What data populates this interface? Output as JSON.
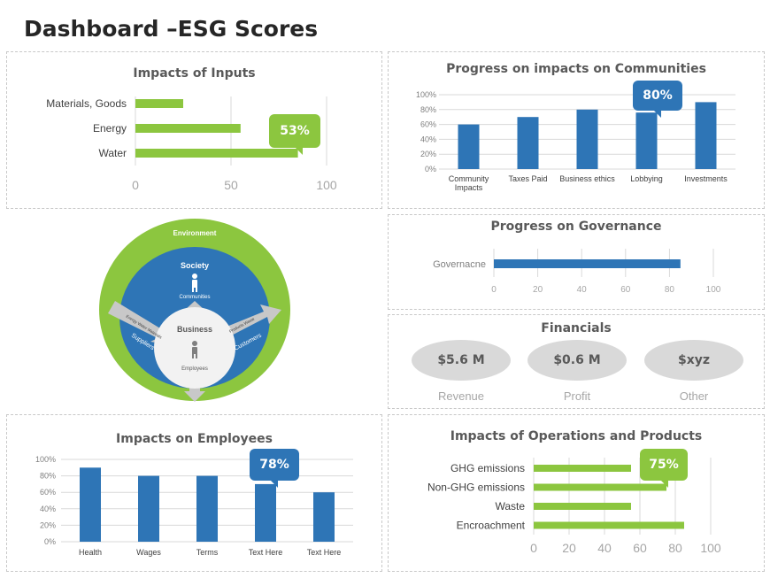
{
  "page_title": "Dashboard –ESG Scores",
  "colors": {
    "green": "#8cc63f",
    "blue": "#2e75b6",
    "grey_oval": "#d9d9d9"
  },
  "inputs": {
    "title": "Impacts of Inputs",
    "callout": "53%"
  },
  "communities": {
    "title": "Progress on impacts on Communities",
    "callout": "80%"
  },
  "governance": {
    "title": "Progress on Governance"
  },
  "financials": {
    "title": "Financials",
    "items": [
      {
        "value": "$5.6 M",
        "label": "Revenue"
      },
      {
        "value": "$0.6 M",
        "label": "Profit"
      },
      {
        "value": "$xyz",
        "label": "Other"
      }
    ]
  },
  "employees": {
    "title": "Impacts on Employees",
    "callout": "78%"
  },
  "operations": {
    "title": "Impacts of Operations and Products",
    "callout": "75%"
  },
  "diagram": {
    "environment": "Environment",
    "society": "Society",
    "communities": "Communities",
    "business": "Business",
    "employees": "Employees",
    "suppliers": "Suppliers",
    "suppliers_sub": "Energy Water Materials",
    "customers": "Customers",
    "customers_sub": "Products Waste"
  },
  "chart_data": [
    {
      "id": "inputs",
      "type": "bar",
      "orientation": "horizontal",
      "categories": [
        "Materials, Goods",
        "Energy",
        "Water"
      ],
      "values": [
        25,
        55,
        85
      ],
      "xlim": [
        0,
        100
      ],
      "xticks": [
        0,
        50,
        100
      ],
      "color": "#8cc63f"
    },
    {
      "id": "communities",
      "type": "bar",
      "orientation": "vertical",
      "categories": [
        "Community Impacts",
        "Taxes Paid",
        "Business ethics",
        "Lobbying",
        "Investments"
      ],
      "values": [
        60,
        70,
        80,
        76,
        90
      ],
      "ylim": [
        0,
        100
      ],
      "yticks": [
        "0%",
        "20%",
        "40%",
        "60%",
        "80%",
        "100%"
      ],
      "color": "#2e75b6",
      "grid": true
    },
    {
      "id": "governance",
      "type": "bar",
      "orientation": "horizontal",
      "categories": [
        "Governacne"
      ],
      "values": [
        85
      ],
      "xlim": [
        0,
        100
      ],
      "xticks": [
        0,
        20,
        40,
        60,
        80,
        100
      ],
      "color": "#2e75b6"
    },
    {
      "id": "employees",
      "type": "bar",
      "orientation": "vertical",
      "categories": [
        "Health",
        "Wages",
        "Terms",
        "Text Here",
        "Text Here"
      ],
      "values": [
        90,
        80,
        80,
        70,
        60
      ],
      "ylim": [
        0,
        100
      ],
      "yticks": [
        "0%",
        "20%",
        "40%",
        "60%",
        "80%",
        "100%"
      ],
      "color": "#2e75b6",
      "grid": true
    },
    {
      "id": "operations",
      "type": "bar",
      "orientation": "horizontal",
      "categories": [
        "GHG emissions",
        "Non-GHG emissions",
        "Waste",
        "Encroachment"
      ],
      "values": [
        55,
        75,
        55,
        85
      ],
      "xlim": [
        0,
        100
      ],
      "xticks": [
        0,
        20,
        40,
        60,
        80,
        100
      ],
      "color": "#8cc63f"
    }
  ]
}
